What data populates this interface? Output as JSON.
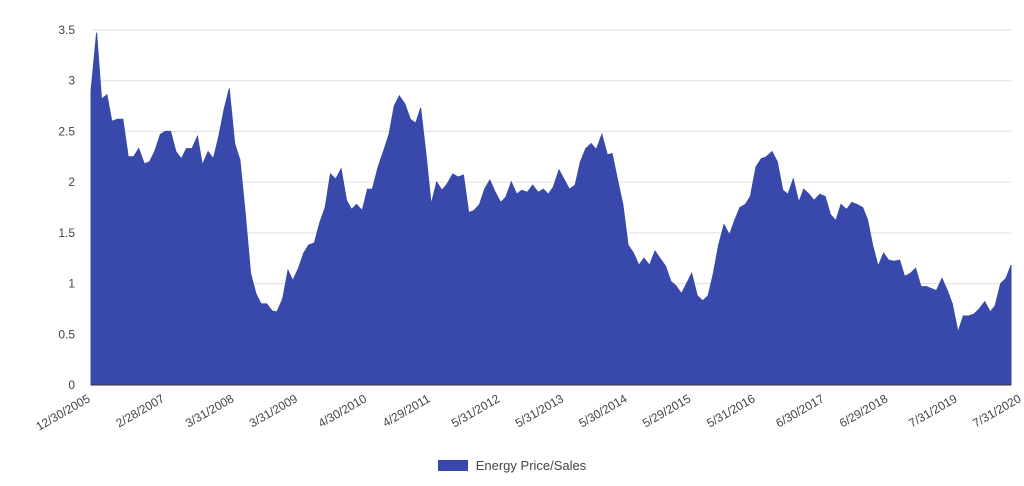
{
  "chart_data": {
    "type": "area",
    "title": "",
    "xlabel": "",
    "ylabel": "",
    "ylim": [
      0,
      3.5
    ],
    "yticks": [
      "0",
      "0.5",
      "1",
      "1.5",
      "2",
      "2.5",
      "3",
      "3.5"
    ],
    "xticks": [
      "12/30/2005",
      "2/28/2007",
      "3/31/2008",
      "3/31/2009",
      "4/30/2010",
      "4/29/2011",
      "5/31/2012",
      "5/31/2013",
      "5/30/2014",
      "5/29/2015",
      "5/31/2016",
      "6/30/2017",
      "6/29/2018",
      "7/31/2019",
      "7/31/2020"
    ],
    "grid": true,
    "legend_position": "bottom",
    "series": [
      {
        "name": "Energy Price/Sales",
        "color": "#3949ab",
        "points": [
          [
            "12/30/2005",
            2.9
          ],
          [
            "1/31/2006",
            3.47
          ],
          [
            "2/28/2006",
            2.82
          ],
          [
            "3/31/2006",
            2.86
          ],
          [
            "4/28/2006",
            2.6
          ],
          [
            "5/31/2006",
            2.62
          ],
          [
            "6/30/2006",
            2.62
          ],
          [
            "7/31/2006",
            2.25
          ],
          [
            "8/31/2006",
            2.25
          ],
          [
            "9/29/2006",
            2.33
          ],
          [
            "10/31/2006",
            2.18
          ],
          [
            "11/30/2006",
            2.2
          ],
          [
            "12/29/2006",
            2.3
          ],
          [
            "1/31/2007",
            2.47
          ],
          [
            "2/28/2007",
            2.5
          ],
          [
            "3/30/2007",
            2.5
          ],
          [
            "4/30/2007",
            2.3
          ],
          [
            "5/31/2007",
            2.23
          ],
          [
            "6/29/2007",
            2.33
          ],
          [
            "7/31/2007",
            2.33
          ],
          [
            "8/31/2007",
            2.45
          ],
          [
            "9/28/2007",
            2.17
          ],
          [
            "10/31/2007",
            2.3
          ],
          [
            "11/30/2007",
            2.23
          ],
          [
            "12/31/2007",
            2.45
          ],
          [
            "1/31/2008",
            2.72
          ],
          [
            "2/29/2008",
            2.92
          ],
          [
            "3/31/2008",
            2.38
          ],
          [
            "4/30/2008",
            2.22
          ],
          [
            "5/30/2008",
            1.7
          ],
          [
            "6/30/2008",
            1.1
          ],
          [
            "7/31/2008",
            0.9
          ],
          [
            "8/29/2008",
            0.8
          ],
          [
            "9/30/2008",
            0.8
          ],
          [
            "10/31/2008",
            0.73
          ],
          [
            "11/28/2008",
            0.72
          ],
          [
            "12/31/2008",
            0.85
          ],
          [
            "1/30/2009",
            1.13
          ],
          [
            "2/27/2009",
            1.03
          ],
          [
            "3/31/2009",
            1.15
          ],
          [
            "4/30/2009",
            1.3
          ],
          [
            "5/29/2009",
            1.38
          ],
          [
            "6/30/2009",
            1.4
          ],
          [
            "7/31/2009",
            1.6
          ],
          [
            "8/31/2009",
            1.75
          ],
          [
            "9/30/2009",
            2.08
          ],
          [
            "10/30/2009",
            2.03
          ],
          [
            "11/30/2009",
            2.13
          ],
          [
            "12/31/2009",
            1.82
          ],
          [
            "1/29/2010",
            1.73
          ],
          [
            "2/26/2010",
            1.78
          ],
          [
            "3/31/2010",
            1.72
          ],
          [
            "4/30/2010",
            1.93
          ],
          [
            "5/28/2010",
            1.93
          ],
          [
            "6/30/2010",
            2.15
          ],
          [
            "7/30/2010",
            2.3
          ],
          [
            "8/31/2010",
            2.47
          ],
          [
            "9/30/2010",
            2.75
          ],
          [
            "10/29/2010",
            2.85
          ],
          [
            "11/30/2010",
            2.77
          ],
          [
            "12/31/2010",
            2.62
          ],
          [
            "1/31/2011",
            2.58
          ],
          [
            "2/28/2011",
            2.73
          ],
          [
            "3/31/2011",
            2.27
          ],
          [
            "4/29/2011",
            1.78
          ],
          [
            "5/31/2011",
            2.0
          ],
          [
            "6/30/2011",
            1.92
          ],
          [
            "7/29/2011",
            1.98
          ],
          [
            "8/31/2011",
            2.08
          ],
          [
            "9/30/2011",
            2.05
          ],
          [
            "10/31/2011",
            2.07
          ],
          [
            "11/30/2011",
            1.7
          ],
          [
            "12/30/2011",
            1.72
          ],
          [
            "1/31/2012",
            1.78
          ],
          [
            "2/29/2012",
            1.93
          ],
          [
            "3/30/2012",
            2.02
          ],
          [
            "4/30/2012",
            1.9
          ],
          [
            "5/31/2012",
            1.8
          ],
          [
            "6/29/2012",
            1.85
          ],
          [
            "7/31/2012",
            2.0
          ],
          [
            "8/31/2012",
            1.88
          ],
          [
            "9/28/2012",
            1.92
          ],
          [
            "10/31/2012",
            1.9
          ],
          [
            "11/30/2012",
            1.97
          ],
          [
            "12/31/2012",
            1.9
          ],
          [
            "1/31/2013",
            1.93
          ],
          [
            "2/28/2013",
            1.88
          ],
          [
            "3/28/2013",
            1.95
          ],
          [
            "4/30/2013",
            2.12
          ],
          [
            "5/31/2013",
            2.02
          ],
          [
            "6/28/2013",
            1.93
          ],
          [
            "7/31/2013",
            1.97
          ],
          [
            "8/30/2013",
            2.2
          ],
          [
            "9/30/2013",
            2.33
          ],
          [
            "10/31/2013",
            2.38
          ],
          [
            "11/29/2013",
            2.32
          ],
          [
            "12/31/2013",
            2.47
          ],
          [
            "1/31/2014",
            2.27
          ],
          [
            "2/28/2014",
            2.28
          ],
          [
            "3/31/2014",
            2.02
          ],
          [
            "4/30/2014",
            1.78
          ],
          [
            "5/30/2014",
            1.38
          ],
          [
            "6/30/2014",
            1.3
          ],
          [
            "7/31/2014",
            1.18
          ],
          [
            "8/29/2014",
            1.25
          ],
          [
            "9/30/2014",
            1.18
          ],
          [
            "10/31/2014",
            1.32
          ],
          [
            "11/28/2014",
            1.25
          ],
          [
            "12/31/2014",
            1.17
          ],
          [
            "1/30/2015",
            1.02
          ],
          [
            "2/27/2015",
            0.98
          ],
          [
            "3/31/2015",
            0.9
          ],
          [
            "4/30/2015",
            1.0
          ],
          [
            "5/29/2015",
            1.1
          ],
          [
            "6/30/2015",
            0.88
          ],
          [
            "7/31/2015",
            0.83
          ],
          [
            "8/31/2015",
            0.88
          ],
          [
            "9/30/2015",
            1.1
          ],
          [
            "10/30/2015",
            1.38
          ],
          [
            "11/30/2015",
            1.58
          ],
          [
            "12/31/2015",
            1.48
          ],
          [
            "1/29/2016",
            1.62
          ],
          [
            "2/29/2016",
            1.75
          ],
          [
            "3/31/2016",
            1.78
          ],
          [
            "4/29/2016",
            1.86
          ],
          [
            "5/31/2016",
            2.15
          ],
          [
            "6/30/2016",
            2.23
          ],
          [
            "7/29/2016",
            2.25
          ],
          [
            "8/31/2016",
            2.3
          ],
          [
            "9/30/2016",
            2.2
          ],
          [
            "10/31/2016",
            1.92
          ],
          [
            "11/30/2016",
            1.88
          ],
          [
            "12/30/2016",
            2.03
          ],
          [
            "1/31/2017",
            1.8
          ],
          [
            "2/28/2017",
            1.93
          ],
          [
            "3/31/2017",
            1.88
          ],
          [
            "4/28/2017",
            1.82
          ],
          [
            "5/31/2017",
            1.88
          ],
          [
            "6/30/2017",
            1.86
          ],
          [
            "7/31/2017",
            1.68
          ],
          [
            "8/31/2017",
            1.62
          ],
          [
            "9/29/2017",
            1.78
          ],
          [
            "10/31/2017",
            1.73
          ],
          [
            "11/30/2017",
            1.8
          ],
          [
            "12/29/2017",
            1.78
          ],
          [
            "1/31/2018",
            1.75
          ],
          [
            "2/28/2018",
            1.63
          ],
          [
            "3/29/2018",
            1.38
          ],
          [
            "4/30/2018",
            1.17
          ],
          [
            "5/31/2018",
            1.3
          ],
          [
            "6/29/2018",
            1.23
          ],
          [
            "7/31/2018",
            1.22
          ],
          [
            "8/31/2018",
            1.23
          ],
          [
            "9/28/2018",
            1.07
          ],
          [
            "10/31/2018",
            1.1
          ],
          [
            "11/30/2018",
            1.15
          ],
          [
            "12/31/2018",
            0.97
          ],
          [
            "1/31/2019",
            0.97
          ],
          [
            "2/28/2019",
            0.95
          ],
          [
            "3/29/2019",
            0.93
          ],
          [
            "4/30/2019",
            1.05
          ],
          [
            "5/31/2019",
            0.93
          ],
          [
            "6/28/2019",
            0.8
          ],
          [
            "7/31/2019",
            0.52
          ],
          [
            "8/30/2019",
            0.68
          ],
          [
            "9/30/2019",
            0.68
          ],
          [
            "10/31/2019",
            0.7
          ],
          [
            "11/29/2019",
            0.75
          ],
          [
            "12/31/2019",
            0.82
          ],
          [
            "1/31/2020",
            0.72
          ],
          [
            "2/28/2020",
            0.78
          ],
          [
            "3/31/2020",
            1.0
          ],
          [
            "4/30/2020",
            1.05
          ],
          [
            "5/29/2020",
            1.18
          ]
        ]
      }
    ]
  }
}
